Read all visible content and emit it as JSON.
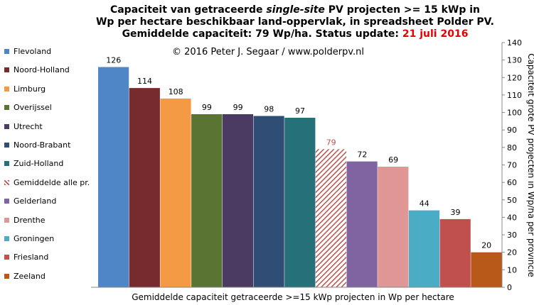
{
  "title": {
    "line1_a": "Capaciteit van getraceerde ",
    "line1_em": "single-site",
    "line1_b": " PV projecten >= 15 kWp in",
    "line2": "Wp per hectare beschikbaar land-oppervlak, in spreadsheet Polder PV.",
    "line3_a": "Gemiddelde capaciteit: 79 Wp/ha. Status update: ",
    "line3_date": "21 juli 2016"
  },
  "copyright": "© 2016 Peter J. Segaar / www.polderpv.nl",
  "chart_data": {
    "type": "bar",
    "categories": [
      "Flevoland",
      "Noord-Holland",
      "Limburg",
      "Overijssel",
      "Utrecht",
      "Noord-Brabant",
      "Zuid-Holland",
      "Gemiddelde alle pr.",
      "Gelderland",
      "Drenthe",
      "Groningen",
      "Friesland",
      "Zeeland"
    ],
    "values": [
      126,
      114,
      108,
      99,
      99,
      98,
      97,
      79,
      72,
      69,
      44,
      39,
      20
    ],
    "value_labels": [
      "126",
      "114",
      "108",
      "99",
      "99",
      "98",
      "97",
      "79",
      "72",
      "69",
      "44",
      "39",
      "20"
    ],
    "colors": [
      "#4f86c6",
      "#772b2e",
      "#f59a44",
      "#5a7433",
      "#4b3a61",
      "#2f4d75",
      "#26707a",
      "#c0504d",
      "#8064a2",
      "#e09694",
      "#4bacc6",
      "#c0504d",
      "#b8591a"
    ],
    "average_index": 7,
    "average_label_color": "#c0504d",
    "xlabel": "Gemiddelde capaciteit getraceerde >=15 kWp projecten in Wp per hectare",
    "ylabel": "Capaciteit grote PV projecten in Wp/ha per provincie",
    "ylim": [
      0,
      140
    ],
    "yticks": [
      "0",
      "10",
      "20",
      "30",
      "40",
      "50",
      "60",
      "70",
      "80",
      "90",
      "100",
      "110",
      "120",
      "130",
      "140"
    ],
    "grid": false,
    "legend_position": "left"
  }
}
